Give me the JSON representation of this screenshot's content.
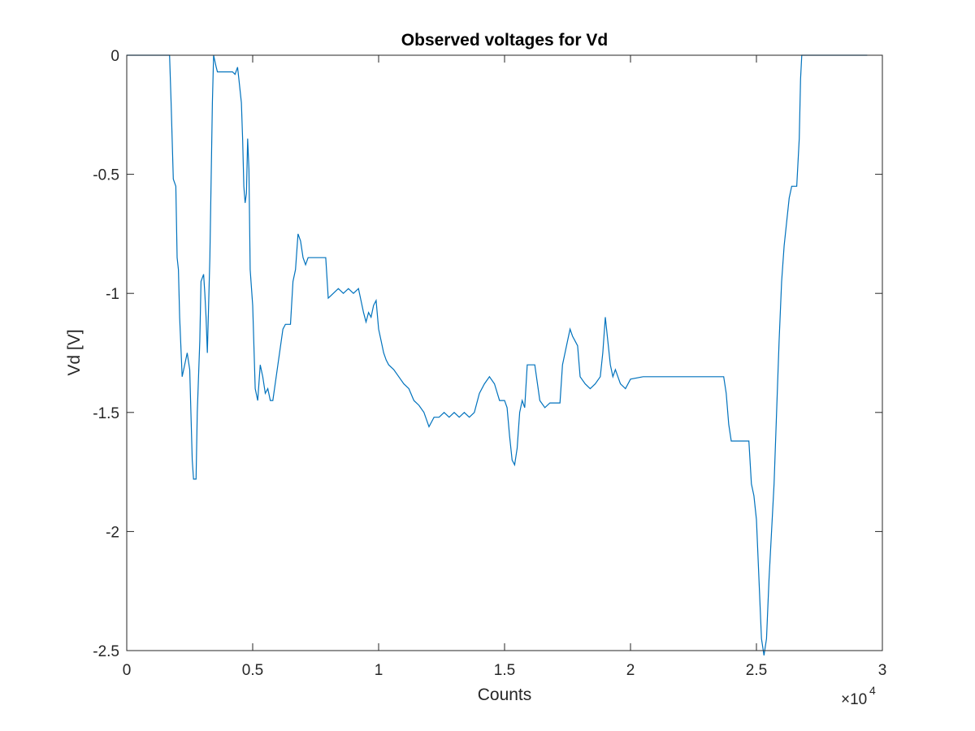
{
  "chart_data": {
    "type": "line",
    "title": "Observed voltages for Vd",
    "xlabel": "Counts",
    "ylabel": "Vd [V]",
    "x_exponent_label": "×10",
    "x_exponent_power": "4",
    "xlim": [
      0,
      3
    ],
    "ylim": [
      -2.5,
      0
    ],
    "x_ticks": [
      0,
      0.5,
      1,
      1.5,
      2,
      2.5,
      3
    ],
    "x_tick_labels": [
      "0",
      "0.5",
      "1",
      "1.5",
      "2",
      "2.5",
      "3"
    ],
    "y_ticks": [
      -2.5,
      -2,
      -1.5,
      -1,
      -0.5,
      0
    ],
    "y_tick_labels": [
      "-2.5",
      "-2",
      "-1.5",
      "-1",
      "-0.5",
      "0"
    ],
    "grid": false,
    "line_color": "#0072bd",
    "axis_color": "#262626",
    "series": [
      {
        "x": [
          0,
          0.17,
          0.176,
          0.185,
          0.195,
          0.2,
          0.205,
          0.21,
          0.22,
          0.23,
          0.24,
          0.25,
          0.26,
          0.265,
          0.275,
          0.28,
          0.29,
          0.295,
          0.305,
          0.31,
          0.315,
          0.32,
          0.33,
          0.34,
          0.345,
          0.355,
          0.36,
          0.38,
          0.4,
          0.42,
          0.43,
          0.44,
          0.445,
          0.455,
          0.46,
          0.465,
          0.47,
          0.475,
          0.48,
          0.485,
          0.49,
          0.5,
          0.51,
          0.52,
          0.53,
          0.54,
          0.55,
          0.56,
          0.57,
          0.58,
          0.6,
          0.62,
          0.63,
          0.64,
          0.65,
          0.66,
          0.67,
          0.68,
          0.69,
          0.7,
          0.71,
          0.72,
          0.73,
          0.74,
          0.75,
          0.76,
          0.78,
          0.79,
          0.8,
          0.82,
          0.84,
          0.86,
          0.88,
          0.9,
          0.92,
          0.94,
          0.95,
          0.96,
          0.97,
          0.98,
          0.99,
          1.0,
          1.01,
          1.02,
          1.03,
          1.04,
          1.06,
          1.08,
          1.1,
          1.12,
          1.14,
          1.16,
          1.18,
          1.2,
          1.22,
          1.24,
          1.26,
          1.28,
          1.3,
          1.32,
          1.34,
          1.36,
          1.38,
          1.4,
          1.42,
          1.44,
          1.46,
          1.48,
          1.5,
          1.51,
          1.52,
          1.53,
          1.54,
          1.55,
          1.56,
          1.57,
          1.58,
          1.59,
          1.6,
          1.61,
          1.62,
          1.64,
          1.66,
          1.68,
          1.7,
          1.72,
          1.73,
          1.74,
          1.75,
          1.76,
          1.77,
          1.78,
          1.79,
          1.8,
          1.82,
          1.84,
          1.86,
          1.88,
          1.89,
          1.9,
          1.91,
          1.92,
          1.93,
          1.94,
          1.95,
          1.96,
          1.98,
          2.0,
          2.05,
          2.1,
          2.15,
          2.2,
          2.25,
          2.3,
          2.35,
          2.37,
          2.38,
          2.39,
          2.4,
          2.42,
          2.44,
          2.46,
          2.47,
          2.48,
          2.49,
          2.5,
          2.51,
          2.52,
          2.53,
          2.54,
          2.55,
          2.56,
          2.57,
          2.58,
          2.59,
          2.6,
          2.61,
          2.62,
          2.63,
          2.64,
          2.65,
          2.66,
          2.67,
          2.675,
          2.68,
          2.7,
          2.8,
          2.9,
          2.94
        ],
        "y": [
          0,
          0,
          -0.2,
          -0.52,
          -0.55,
          -0.85,
          -0.9,
          -1.1,
          -1.35,
          -1.3,
          -1.25,
          -1.32,
          -1.7,
          -1.78,
          -1.78,
          -1.5,
          -1.2,
          -0.95,
          -0.92,
          -1.0,
          -1.1,
          -1.25,
          -0.85,
          -0.2,
          0,
          -0.05,
          -0.07,
          -0.07,
          -0.07,
          -0.07,
          -0.08,
          -0.05,
          -0.1,
          -0.2,
          -0.35,
          -0.55,
          -0.62,
          -0.58,
          -0.35,
          -0.48,
          -0.9,
          -1.05,
          -1.4,
          -1.45,
          -1.3,
          -1.35,
          -1.42,
          -1.4,
          -1.45,
          -1.45,
          -1.3,
          -1.15,
          -1.13,
          -1.13,
          -1.13,
          -0.95,
          -0.9,
          -0.75,
          -0.78,
          -0.85,
          -0.88,
          -0.85,
          -0.85,
          -0.85,
          -0.85,
          -0.85,
          -0.85,
          -0.85,
          -1.02,
          -1.0,
          -0.98,
          -1.0,
          -0.98,
          -1.0,
          -0.98,
          -1.08,
          -1.12,
          -1.08,
          -1.1,
          -1.05,
          -1.03,
          -1.15,
          -1.2,
          -1.25,
          -1.28,
          -1.3,
          -1.32,
          -1.35,
          -1.38,
          -1.4,
          -1.45,
          -1.47,
          -1.5,
          -1.56,
          -1.52,
          -1.52,
          -1.5,
          -1.52,
          -1.5,
          -1.52,
          -1.5,
          -1.52,
          -1.5,
          -1.42,
          -1.38,
          -1.35,
          -1.38,
          -1.45,
          -1.45,
          -1.48,
          -1.6,
          -1.7,
          -1.72,
          -1.65,
          -1.5,
          -1.45,
          -1.48,
          -1.3,
          -1.3,
          -1.3,
          -1.3,
          -1.45,
          -1.48,
          -1.46,
          -1.46,
          -1.46,
          -1.3,
          -1.25,
          -1.2,
          -1.15,
          -1.18,
          -1.2,
          -1.22,
          -1.35,
          -1.38,
          -1.4,
          -1.38,
          -1.35,
          -1.25,
          -1.1,
          -1.2,
          -1.3,
          -1.35,
          -1.32,
          -1.35,
          -1.38,
          -1.4,
          -1.36,
          -1.35,
          -1.35,
          -1.35,
          -1.35,
          -1.35,
          -1.35,
          -1.35,
          -1.35,
          -1.42,
          -1.55,
          -1.62,
          -1.62,
          -1.62,
          -1.62,
          -1.62,
          -1.8,
          -1.85,
          -1.95,
          -2.2,
          -2.45,
          -2.52,
          -2.45,
          -2.2,
          -2.0,
          -1.8,
          -1.5,
          -1.2,
          -0.95,
          -0.8,
          -0.7,
          -0.6,
          -0.55,
          -0.55,
          -0.55,
          -0.35,
          -0.1,
          0,
          0,
          0,
          0,
          0
        ]
      }
    ]
  }
}
